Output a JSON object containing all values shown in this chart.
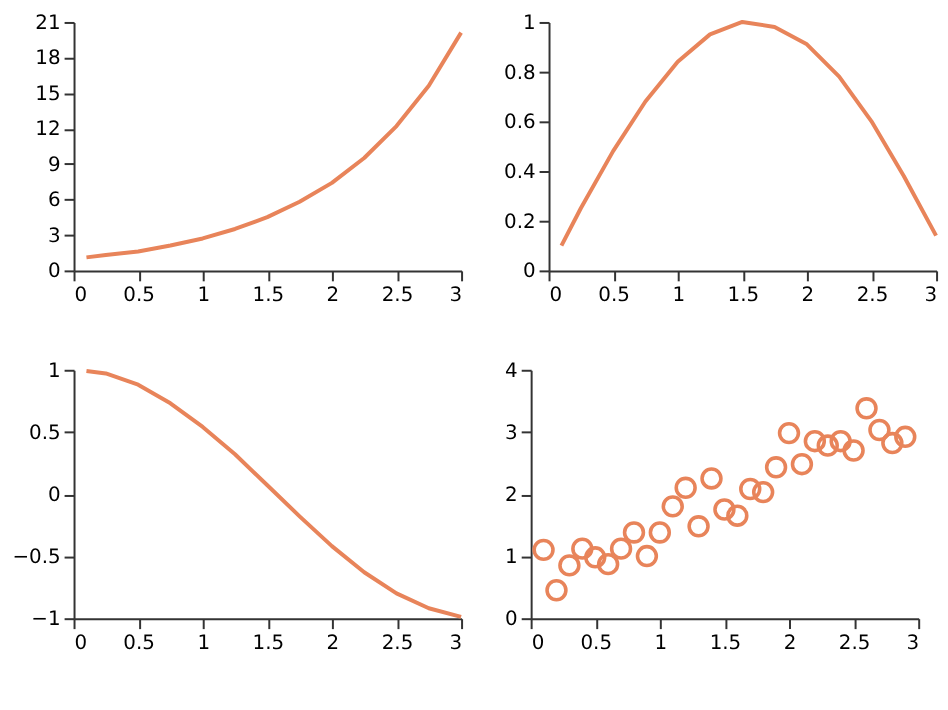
{
  "chart_data": [
    {
      "type": "line",
      "x": [
        0.1,
        0.25,
        0.5,
        0.75,
        1,
        1.25,
        1.5,
        1.75,
        2,
        2.25,
        2.5,
        2.75,
        3
      ],
      "series": [
        {
          "color": "#e8845a",
          "values": [
            1.1,
            1.3,
            1.6,
            2.1,
            2.7,
            3.5,
            4.5,
            5.8,
            7.4,
            9.5,
            12.2,
            15.6,
            20.1
          ]
        }
      ],
      "xlim": [
        0,
        3
      ],
      "xticks": [
        0,
        0.5,
        1,
        1.5,
        2,
        2.5,
        3
      ],
      "ylim": [
        0,
        21
      ],
      "yticks": [
        0,
        3,
        6,
        9,
        12,
        15,
        18,
        21
      ],
      "grid": false,
      "marker": "none",
      "line_style": "solid"
    },
    {
      "type": "line",
      "x": [
        0.1,
        0.25,
        0.5,
        0.75,
        1,
        1.25,
        1.5,
        1.75,
        2,
        2.25,
        2.5,
        2.75,
        3
      ],
      "series": [
        {
          "color": "#e8845a",
          "values": [
            0.1,
            0.25,
            0.48,
            0.68,
            0.84,
            0.95,
            1.0,
            0.98,
            0.91,
            0.78,
            0.6,
            0.38,
            0.14
          ]
        }
      ],
      "xlim": [
        0,
        3
      ],
      "xticks": [
        0,
        0.5,
        1,
        1.5,
        2,
        2.5,
        3
      ],
      "ylim": [
        0,
        1
      ],
      "yticks": [
        0,
        0.2,
        0.4,
        0.6,
        0.8,
        1
      ],
      "grid": false,
      "marker": "none",
      "line_style": "solid"
    },
    {
      "type": "line",
      "x": [
        0.1,
        0.25,
        0.5,
        0.75,
        1,
        1.25,
        1.5,
        1.75,
        2,
        2.25,
        2.5,
        2.75,
        3
      ],
      "series": [
        {
          "color": "#e8845a",
          "values": [
            0.99,
            0.97,
            0.88,
            0.73,
            0.54,
            0.32,
            0.07,
            -0.18,
            -0.42,
            -0.63,
            -0.8,
            -0.92,
            -0.99
          ]
        }
      ],
      "xlim": [
        0,
        3
      ],
      "xticks": [
        0,
        0.5,
        1,
        1.5,
        2,
        2.5,
        3
      ],
      "ylim": [
        -1,
        1
      ],
      "yticks": [
        -1,
        -0.5,
        0,
        0.5,
        1
      ],
      "grid": false,
      "marker": "none",
      "line_style": "solid"
    },
    {
      "type": "scatter",
      "x": [
        0.1,
        0.2,
        0.3,
        0.4,
        0.5,
        0.6,
        0.7,
        0.8,
        0.9,
        1.0,
        1.1,
        1.2,
        1.3,
        1.4,
        1.5,
        1.6,
        1.7,
        1.8,
        1.9,
        2.0,
        2.1,
        2.2,
        2.3,
        2.4,
        2.5,
        2.6,
        2.7,
        2.8,
        2.9
      ],
      "series": [
        {
          "color": "#e8845a",
          "values": [
            1.1,
            0.45,
            0.85,
            1.12,
            0.98,
            0.87,
            1.12,
            1.38,
            1.0,
            1.38,
            1.8,
            2.1,
            1.48,
            2.25,
            1.75,
            1.65,
            2.08,
            2.03,
            2.43,
            2.98,
            2.48,
            2.85,
            2.78,
            2.85,
            2.7,
            3.38,
            3.03,
            2.82,
            2.92
          ]
        }
      ],
      "xlim": [
        0,
        3
      ],
      "xticks": [
        0,
        0.5,
        1,
        1.5,
        2,
        2.5,
        3
      ],
      "ylim": [
        0,
        4
      ],
      "yticks": [
        0,
        1,
        2,
        3,
        4
      ],
      "grid": false,
      "marker": "circle"
    }
  ]
}
